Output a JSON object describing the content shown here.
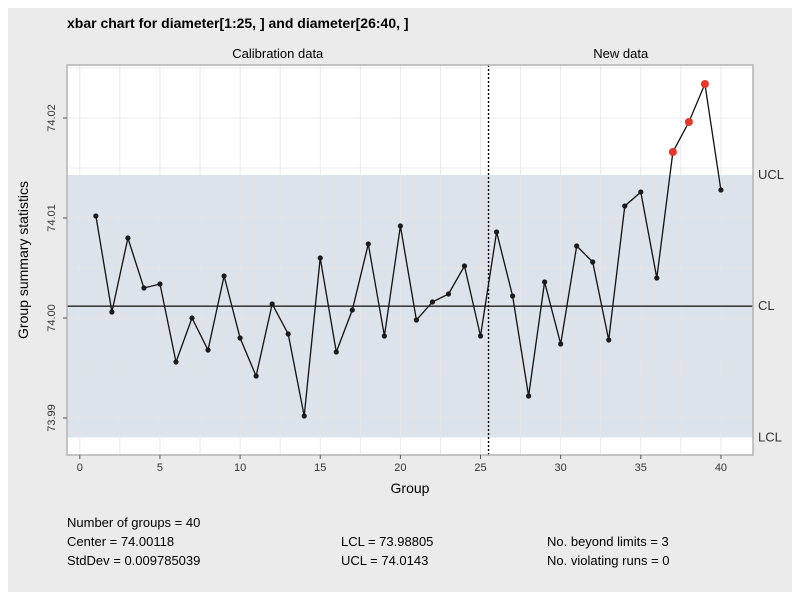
{
  "chart_data": {
    "type": "line",
    "title": "xbar chart for diameter[1:25, ] and diameter[26:40, ]",
    "xlabel": "Group",
    "ylabel": "Group summary statistics",
    "sections": [
      "Calibration data",
      "New data"
    ],
    "section_boundary": 25.5,
    "xlim": [
      -0.8,
      42
    ],
    "ylim": [
      73.9863,
      74.0253
    ],
    "x_ticks": [
      0,
      5,
      10,
      15,
      20,
      25,
      30,
      35,
      40
    ],
    "y_ticks": [
      73.99,
      74.0,
      74.01,
      74.02
    ],
    "y_tick_labels": [
      "73.99",
      "74.00",
      "74.01",
      "74.02"
    ],
    "center": 74.00118,
    "lcl": 73.98805,
    "ucl": 74.0143,
    "limit_labels": {
      "ucl": "UCL",
      "cl": "CL",
      "lcl": "LCL"
    },
    "x": [
      1,
      2,
      3,
      4,
      5,
      6,
      7,
      8,
      9,
      10,
      11,
      12,
      13,
      14,
      15,
      16,
      17,
      18,
      19,
      20,
      21,
      22,
      23,
      24,
      25,
      26,
      27,
      28,
      29,
      30,
      31,
      32,
      33,
      34,
      35,
      36,
      37,
      38,
      39,
      40
    ],
    "values": [
      74.0102,
      74.0006,
      74.008,
      74.003,
      74.0034,
      73.9956,
      74.0,
      73.9968,
      74.0042,
      73.998,
      73.9942,
      74.0014,
      73.9984,
      73.9902,
      74.006,
      73.9966,
      74.0008,
      74.0074,
      73.9982,
      74.0092,
      73.9998,
      74.0016,
      74.0024,
      74.0052,
      73.9982,
      74.0086,
      74.0022,
      73.9922,
      74.0036,
      73.9974,
      74.0072,
      74.0056,
      73.9978,
      74.0112,
      74.0126,
      74.004,
      74.0166,
      74.0196,
      74.0234,
      74.0128
    ],
    "beyond_limits_groups": [
      37,
      38,
      39
    ],
    "colors": {
      "points": "#1a1a1a",
      "violation": "#e8362b",
      "band": "#dde3eb",
      "panel": "#ffffff",
      "grid": "#e6e6e6"
    }
  },
  "stats": {
    "n_groups": "Number of groups = 40",
    "center": "Center = 74.00118",
    "stddev": "StdDev = 0.009785039",
    "lcl": "LCL = 73.98805",
    "ucl": "UCL = 74.0143",
    "beyond": "No. beyond limits = 3",
    "violating": "No. violating runs = 0"
  }
}
